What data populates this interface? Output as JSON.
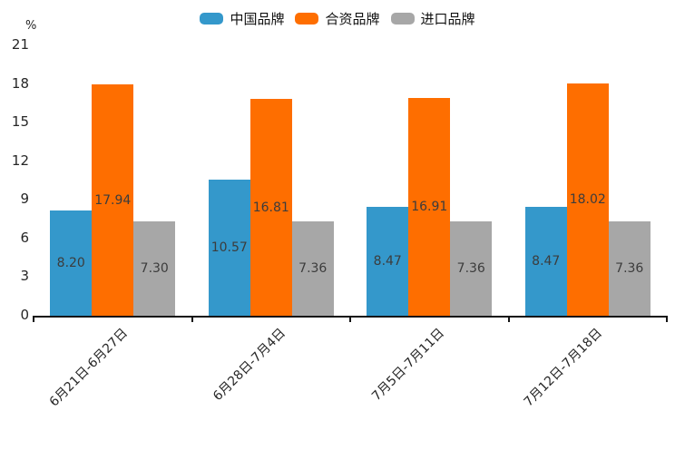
{
  "chart_data": {
    "type": "bar",
    "title": "",
    "unit_label": "%",
    "categories": [
      "6月21日-6月27日",
      "6月28日-7月4日",
      "7月5日-7月11日",
      "7月12日-7月18日"
    ],
    "series": [
      {
        "name": "中国品牌",
        "color": "#3498cb",
        "values": [
          8.2,
          10.57,
          8.47,
          8.47
        ]
      },
      {
        "name": "合资品牌",
        "color": "#fe6e00",
        "values": [
          17.94,
          16.81,
          16.91,
          18.02
        ]
      },
      {
        "name": "进口品牌",
        "color": "#a7a7a7",
        "values": [
          7.3,
          7.36,
          7.36,
          7.36
        ]
      }
    ],
    "ylim": [
      0,
      21
    ],
    "yticks": [
      0,
      3,
      6,
      9,
      12,
      15,
      18,
      21
    ],
    "value_decimals": 2,
    "value_labels": true,
    "legend_position": "top",
    "grid": false,
    "axis_color": "#141414"
  }
}
